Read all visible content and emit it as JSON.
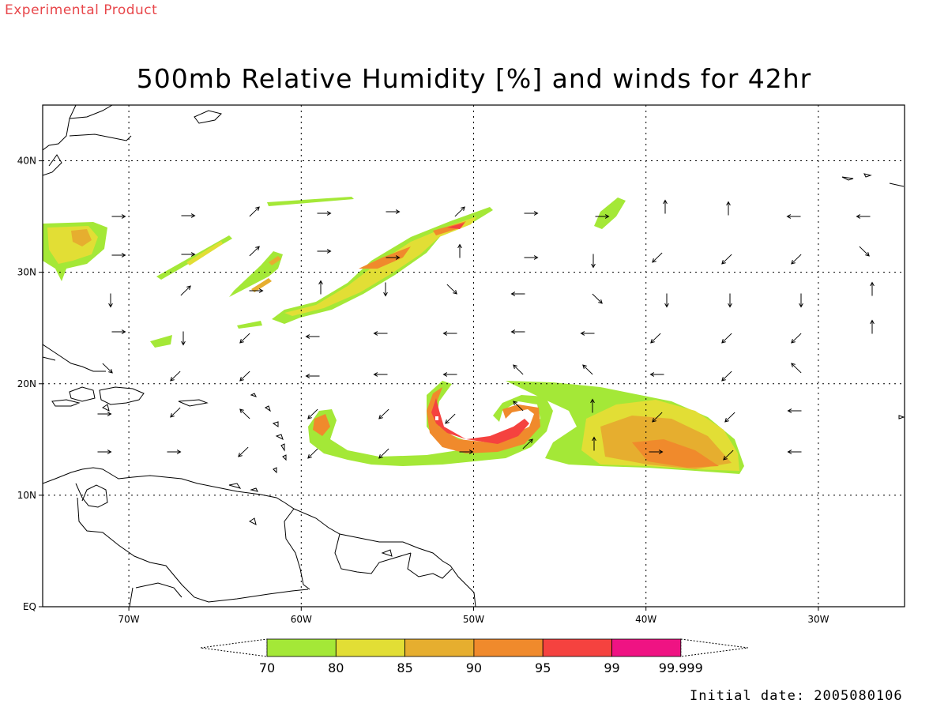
{
  "header": {
    "experimental_label": "Experimental Product",
    "title": "500mb Relative Humidity [%] and winds for 42hr"
  },
  "footer": {
    "initial_date": "Initial date: 2005080106"
  },
  "map": {
    "lon_range": [
      -75,
      -25
    ],
    "lat_range": [
      0,
      45
    ],
    "lon_ticks": [
      {
        "lon": -70,
        "label": "70W"
      },
      {
        "lon": -60,
        "label": "60W"
      },
      {
        "lon": -50,
        "label": "50W"
      },
      {
        "lon": -40,
        "label": "40W"
      },
      {
        "lon": -30,
        "label": "30W"
      }
    ],
    "lat_ticks": [
      {
        "lat": 0,
        "label": "EQ"
      },
      {
        "lat": 10,
        "label": "10N"
      },
      {
        "lat": 20,
        "label": "20N"
      },
      {
        "lat": 30,
        "label": "30N"
      },
      {
        "lat": 40,
        "label": "40N"
      }
    ],
    "grid": "dotted"
  },
  "colorbar": {
    "labels": [
      "70",
      "80",
      "85",
      "90",
      "95",
      "99",
      "99.999"
    ],
    "colors": [
      "#a4e837",
      "#e2de35",
      "#e6ae2f",
      "#f08a2c",
      "#f5423f",
      "#ef1383"
    ]
  }
}
